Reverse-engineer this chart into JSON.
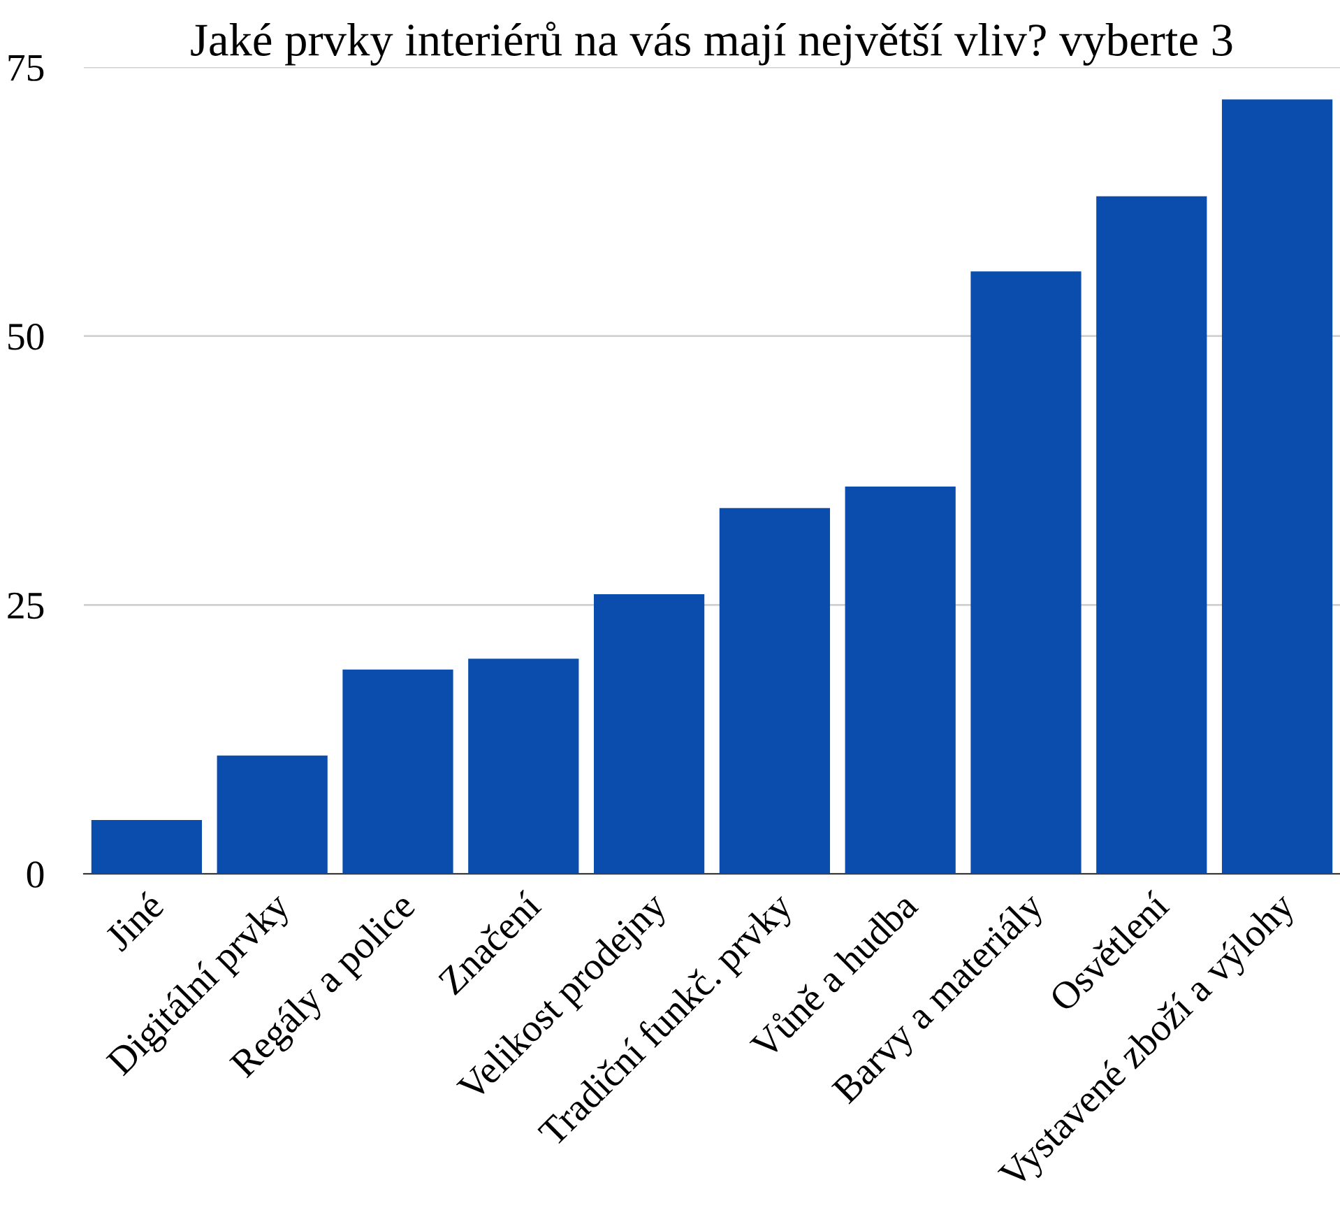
{
  "chart_data": {
    "type": "bar",
    "title": "Jaké prvky interiérů na vás mají největší vliv? vyberte 3",
    "categories": [
      "Jiné",
      "Digitální prvky",
      "Regály a police",
      "Značení",
      "Velikost prodejny",
      "Tradiční funkč. prvky",
      "Vůně a hudba",
      "Barvy a materiály",
      "Osvětlení",
      "Vystavené zboží a výlohy"
    ],
    "values": [
      5,
      11,
      19,
      20,
      26,
      34,
      36,
      56,
      63,
      72
    ],
    "color": "#0a4dad",
    "ylim": [
      0,
      75
    ],
    "yticks": [
      0,
      25,
      50,
      75
    ],
    "grid": "y",
    "legend": false
  }
}
